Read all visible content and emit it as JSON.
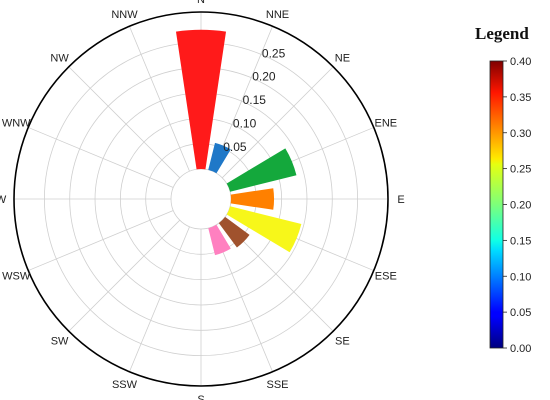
{
  "chart_data": {
    "type": "polar-bar",
    "directions": [
      "N",
      "NNE",
      "NE",
      "ENE",
      "E",
      "ESE",
      "SE",
      "SSE",
      "S",
      "SSW",
      "SW",
      "WSW",
      "W",
      "WNW",
      "NW",
      "NNW"
    ],
    "radial_ticks": [
      0.05,
      0.1,
      0.15,
      0.2,
      0.25
    ],
    "radial_tick_labels": [
      "0.05",
      "0.10",
      "0.15",
      "0.20",
      "0.25"
    ],
    "rmax": 0.31,
    "bars": [
      {
        "direction": "N",
        "value": 0.275,
        "color": "#ff1a1a"
      },
      {
        "direction": "NNE",
        "value": 0.055,
        "color": "#1f78c8"
      },
      {
        "direction": "ENE",
        "value": 0.135,
        "color": "#14a83c"
      },
      {
        "direction": "E",
        "value": 0.085,
        "color": "#ff8000"
      },
      {
        "direction": "ESE",
        "value": 0.145,
        "color": "#f7f71a"
      },
      {
        "direction": "SE",
        "value": 0.06,
        "color": "#a0522d"
      },
      {
        "direction": "SSE",
        "value": 0.055,
        "color": "#ff80c0"
      }
    ],
    "legend": {
      "title": "Legend",
      "min": 0.0,
      "max": 0.4,
      "ticks": [
        "0.00",
        "0.05",
        "0.10",
        "0.15",
        "0.20",
        "0.25",
        "0.30",
        "0.35",
        "0.40"
      ],
      "colormap": "jet"
    }
  }
}
